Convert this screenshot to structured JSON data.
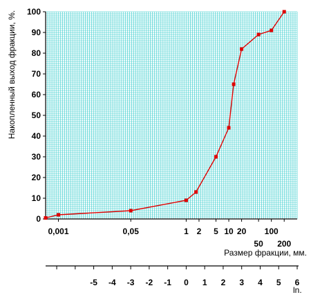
{
  "chart_data": {
    "type": "line",
    "title": "",
    "ylabel": "Накопленный выход фракции, %.",
    "xlabel": "Размер фракции, мм.",
    "ylim": [
      0,
      100
    ],
    "yticks": [
      0,
      10,
      20,
      30,
      40,
      50,
      60,
      70,
      80,
      90,
      100
    ],
    "x_scale": "log",
    "xlim_ln": [
      -7.6,
      6.0
    ],
    "x_ticks_top": [
      "0,001",
      "0,05",
      "1",
      "2",
      "5",
      "10",
      "20",
      "100"
    ],
    "x_ticks_bottom": [
      "50",
      "200"
    ],
    "ln_axis_label": "ln.",
    "ln_ticks": [
      "-5",
      "-4",
      "-3",
      "-2",
      "-1",
      "0",
      "1",
      "2",
      "3",
      "4",
      "5",
      "6"
    ],
    "series": [
      {
        "x": [
          0.0005,
          0.001,
          0.05,
          1,
          1.7,
          5,
          10,
          13,
          20,
          50,
          100,
          200
        ],
        "y": [
          0.5,
          2,
          4,
          9,
          13,
          30,
          44,
          65,
          82,
          89,
          91,
          100
        ]
      }
    ],
    "grid": true,
    "colors": {
      "grid": "#33cccc",
      "line": "#e00000",
      "axis": "#000000"
    }
  }
}
